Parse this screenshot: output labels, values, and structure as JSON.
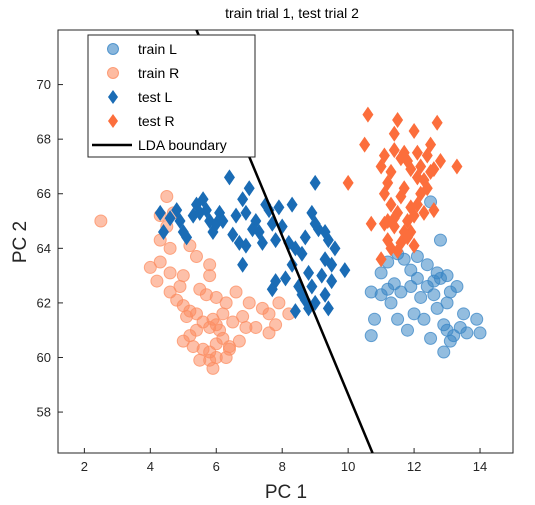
{
  "chart_data": {
    "type": "scatter",
    "title": "train trial 1, test trial 2",
    "xlabel": "PC 1",
    "ylabel": "PC 2",
    "xlim": [
      1.2,
      15.0
    ],
    "ylim": [
      56.5,
      72.0
    ],
    "xticks": [
      "2",
      "4",
      "6",
      "8",
      "10",
      "12",
      "14"
    ],
    "yticks": [
      "58",
      "60",
      "62",
      "64",
      "66",
      "68",
      "70"
    ],
    "grid": false,
    "legend_position": "top-left",
    "series": [
      {
        "name": "train L",
        "marker": "circle",
        "color": "#3a86c5",
        "points": [
          [
            10.7,
            62.4
          ],
          [
            11.0,
            63.1
          ],
          [
            11.2,
            63.5
          ],
          [
            11.5,
            63.8
          ],
          [
            11.7,
            63.6
          ],
          [
            11.9,
            63.2
          ],
          [
            12.1,
            63.7
          ],
          [
            12.4,
            63.4
          ],
          [
            12.6,
            62.8
          ],
          [
            12.8,
            64.3
          ],
          [
            12.5,
            65.7
          ],
          [
            11.2,
            62.5
          ],
          [
            11.3,
            62.0
          ],
          [
            11.5,
            61.4
          ],
          [
            11.8,
            61.0
          ],
          [
            12.0,
            61.6
          ],
          [
            12.2,
            62.2
          ],
          [
            12.4,
            62.6
          ],
          [
            12.6,
            62.3
          ],
          [
            12.8,
            62.9
          ],
          [
            13.0,
            63.0
          ],
          [
            13.1,
            62.4
          ],
          [
            13.3,
            62.6
          ],
          [
            12.7,
            61.8
          ],
          [
            12.9,
            61.2
          ],
          [
            13.0,
            61.0
          ],
          [
            13.1,
            60.6
          ],
          [
            12.9,
            60.2
          ],
          [
            13.4,
            61.1
          ],
          [
            13.6,
            60.9
          ],
          [
            13.9,
            61.4
          ],
          [
            14.0,
            60.9
          ],
          [
            13.5,
            61.6
          ],
          [
            10.8,
            61.4
          ],
          [
            10.7,
            60.8
          ],
          [
            11.6,
            62.4
          ],
          [
            11.9,
            62.6
          ],
          [
            12.1,
            62.9
          ],
          [
            12.3,
            61.4
          ],
          [
            12.5,
            60.7
          ],
          [
            13.2,
            60.8
          ],
          [
            13.0,
            62.0
          ],
          [
            12.7,
            63.1
          ],
          [
            11.0,
            62.3
          ],
          [
            11.4,
            62.7
          ]
        ]
      },
      {
        "name": "train R",
        "marker": "circle",
        "color": "#fc8d62",
        "points": [
          [
            2.5,
            65.0
          ],
          [
            4.5,
            65.9
          ],
          [
            4.3,
            65.2
          ],
          [
            4.7,
            65.3
          ],
          [
            4.5,
            64.8
          ],
          [
            4.3,
            64.3
          ],
          [
            4.6,
            64.0
          ],
          [
            4.3,
            63.5
          ],
          [
            4.0,
            63.3
          ],
          [
            4.6,
            63.1
          ],
          [
            5.0,
            63.0
          ],
          [
            4.2,
            62.8
          ],
          [
            4.6,
            62.4
          ],
          [
            4.8,
            62.1
          ],
          [
            5.0,
            61.9
          ],
          [
            5.2,
            61.7
          ],
          [
            5.4,
            61.6
          ],
          [
            5.6,
            61.3
          ],
          [
            5.8,
            61.1
          ],
          [
            5.9,
            61.4
          ],
          [
            6.0,
            61.2
          ],
          [
            5.4,
            61.0
          ],
          [
            5.2,
            60.8
          ],
          [
            5.0,
            60.6
          ],
          [
            5.3,
            60.4
          ],
          [
            5.6,
            60.3
          ],
          [
            5.8,
            60.2
          ],
          [
            6.0,
            60.5
          ],
          [
            6.2,
            60.7
          ],
          [
            6.4,
            60.4
          ],
          [
            6.7,
            60.6
          ],
          [
            6.0,
            60.0
          ],
          [
            5.8,
            59.9
          ],
          [
            5.5,
            59.9
          ],
          [
            5.9,
            59.6
          ],
          [
            6.3,
            60.0
          ],
          [
            6.5,
            61.3
          ],
          [
            6.9,
            61.1
          ],
          [
            7.2,
            61.1
          ],
          [
            7.6,
            61.6
          ],
          [
            7.8,
            61.2
          ],
          [
            8.2,
            61.6
          ],
          [
            7.4,
            61.8
          ],
          [
            7.0,
            62.0
          ],
          [
            6.8,
            61.5
          ],
          [
            6.2,
            61.6
          ],
          [
            6.0,
            62.2
          ],
          [
            6.3,
            62.0
          ],
          [
            5.7,
            62.3
          ],
          [
            5.8,
            63.0
          ],
          [
            5.8,
            63.4
          ],
          [
            5.4,
            63.7
          ],
          [
            5.2,
            64.1
          ],
          [
            6.6,
            62.4
          ],
          [
            7.9,
            62.0
          ],
          [
            5.5,
            62.5
          ],
          [
            6.1,
            61.0
          ],
          [
            6.4,
            60.3
          ],
          [
            5.1,
            61.5
          ],
          [
            4.9,
            62.6
          ],
          [
            7.6,
            60.9
          ]
        ]
      },
      {
        "name": "test L",
        "marker": "diamond",
        "color": "#1a6cb5",
        "points": [
          [
            4.3,
            65.3
          ],
          [
            4.6,
            65.1
          ],
          [
            4.8,
            65.4
          ],
          [
            4.9,
            65.0
          ],
          [
            5.0,
            64.6
          ],
          [
            5.1,
            64.4
          ],
          [
            5.3,
            65.2
          ],
          [
            5.4,
            65.6
          ],
          [
            5.5,
            65.3
          ],
          [
            5.6,
            65.8
          ],
          [
            5.8,
            65.0
          ],
          [
            5.9,
            64.6
          ],
          [
            6.0,
            64.9
          ],
          [
            6.1,
            65.3
          ],
          [
            6.2,
            65.0
          ],
          [
            6.4,
            66.6
          ],
          [
            6.6,
            65.2
          ],
          [
            6.8,
            65.8
          ],
          [
            6.9,
            65.3
          ],
          [
            7.0,
            66.2
          ],
          [
            7.2,
            65.0
          ],
          [
            7.3,
            64.6
          ],
          [
            7.4,
            64.2
          ],
          [
            7.5,
            65.6
          ],
          [
            7.7,
            64.9
          ],
          [
            7.8,
            64.3
          ],
          [
            7.9,
            65.5
          ],
          [
            8.0,
            64.8
          ],
          [
            8.2,
            64.2
          ],
          [
            8.4,
            64.0
          ],
          [
            8.6,
            63.8
          ],
          [
            8.7,
            64.4
          ],
          [
            8.9,
            65.3
          ],
          [
            9.0,
            66.4
          ],
          [
            9.1,
            64.7
          ],
          [
            9.3,
            64.6
          ],
          [
            9.4,
            64.3
          ],
          [
            9.6,
            64.0
          ],
          [
            9.3,
            63.6
          ],
          [
            9.5,
            63.4
          ],
          [
            9.2,
            63.0
          ],
          [
            9.9,
            63.2
          ],
          [
            8.8,
            63.1
          ],
          [
            8.3,
            63.4
          ],
          [
            8.1,
            62.9
          ],
          [
            7.8,
            62.8
          ],
          [
            7.7,
            62.5
          ],
          [
            8.5,
            62.6
          ],
          [
            8.6,
            62.3
          ],
          [
            8.7,
            62.1
          ],
          [
            8.8,
            61.8
          ],
          [
            8.4,
            61.7
          ],
          [
            9.0,
            62.0
          ],
          [
            9.3,
            62.3
          ],
          [
            9.4,
            61.8
          ],
          [
            6.7,
            64.2
          ],
          [
            6.5,
            64.5
          ],
          [
            6.9,
            64.1
          ],
          [
            6.8,
            63.4
          ],
          [
            7.6,
            65.4
          ],
          [
            8.3,
            65.6
          ],
          [
            9.0,
            64.9
          ],
          [
            4.4,
            64.6
          ],
          [
            5.7,
            65.4
          ],
          [
            7.1,
            64.7
          ],
          [
            8.9,
            62.6
          ],
          [
            9.5,
            62.8
          ]
        ]
      },
      {
        "name": "test R",
        "marker": "diamond",
        "color": "#fc6e3c",
        "points": [
          [
            10.0,
            66.4
          ],
          [
            10.5,
            67.8
          ],
          [
            10.6,
            68.9
          ],
          [
            11.0,
            67.0
          ],
          [
            11.1,
            67.4
          ],
          [
            11.2,
            66.4
          ],
          [
            11.3,
            66.8
          ],
          [
            11.4,
            67.6
          ],
          [
            11.5,
            68.7
          ],
          [
            11.6,
            67.3
          ],
          [
            11.7,
            66.2
          ],
          [
            11.8,
            67.2
          ],
          [
            11.9,
            66.9
          ],
          [
            12.0,
            68.3
          ],
          [
            12.1,
            67.5
          ],
          [
            12.2,
            67.0
          ],
          [
            12.3,
            66.5
          ],
          [
            12.4,
            67.4
          ],
          [
            12.5,
            67.8
          ],
          [
            12.6,
            66.9
          ],
          [
            12.7,
            68.6
          ],
          [
            12.8,
            67.2
          ],
          [
            13.3,
            67.0
          ],
          [
            11.1,
            66.0
          ],
          [
            11.3,
            65.6
          ],
          [
            11.5,
            65.3
          ],
          [
            11.6,
            65.9
          ],
          [
            11.8,
            65.0
          ],
          [
            11.9,
            64.6
          ],
          [
            12.0,
            65.2
          ],
          [
            12.1,
            65.6
          ],
          [
            12.2,
            66.0
          ],
          [
            12.3,
            65.3
          ],
          [
            12.4,
            66.2
          ],
          [
            12.6,
            65.4
          ],
          [
            11.2,
            65.0
          ],
          [
            11.4,
            64.8
          ],
          [
            11.6,
            64.2
          ],
          [
            11.7,
            64.6
          ],
          [
            11.9,
            65.5
          ],
          [
            10.7,
            64.9
          ],
          [
            11.0,
            63.6
          ],
          [
            11.2,
            64.3
          ],
          [
            11.3,
            64.0
          ],
          [
            11.5,
            63.9
          ],
          [
            11.8,
            64.4
          ],
          [
            12.0,
            64.1
          ],
          [
            11.1,
            64.9
          ],
          [
            11.4,
            65.1
          ],
          [
            12.1,
            66.6
          ],
          [
            11.7,
            67.5
          ],
          [
            12.5,
            66.8
          ],
          [
            11.4,
            68.2
          ]
        ]
      }
    ],
    "boundary": {
      "name": "LDA boundary",
      "color": "#000000",
      "points": [
        [
          5.4,
          72.0
        ],
        [
          10.74,
          56.5
        ]
      ]
    }
  }
}
